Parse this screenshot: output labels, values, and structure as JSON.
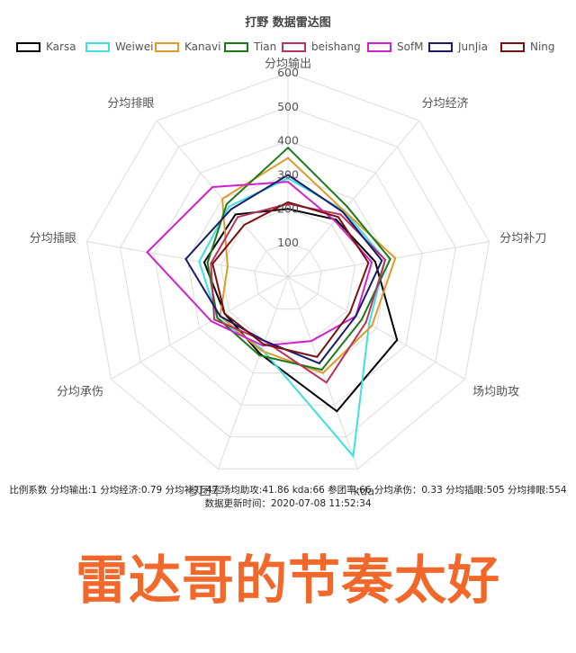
{
  "chart_data": {
    "type": "radar",
    "title": "打野 数据雷达图",
    "axes": [
      "分均输出",
      "分均经济",
      "分均补刀",
      "场均助攻",
      "kda",
      "参团率",
      "分均承伤",
      "分均插眼",
      "分均排眼"
    ],
    "rlim": [
      0,
      600
    ],
    "r_ticks": [
      "100",
      "200",
      "300",
      "400",
      "500",
      "600"
    ],
    "series": [
      {
        "name": "Karsa",
        "color": "#000000",
        "values": [
          200,
          220,
          260,
          370,
          420,
          240,
          215,
          250,
          240
        ]
      },
      {
        "name": "Weiwei",
        "color": "#3ee0e0",
        "values": [
          290,
          255,
          290,
          275,
          560,
          225,
          240,
          265,
          270
        ]
      },
      {
        "name": "Kanavi",
        "color": "#e09a2a",
        "values": [
          350,
          255,
          320,
          285,
          300,
          230,
          230,
          180,
          300
        ]
      },
      {
        "name": "Tian",
        "color": "#1a7a1a",
        "values": [
          380,
          270,
          305,
          250,
          290,
          245,
          240,
          240,
          280
        ]
      },
      {
        "name": "beishang",
        "color": "#b83260",
        "values": [
          215,
          240,
          290,
          265,
          330,
          200,
          250,
          230,
          230
        ]
      },
      {
        "name": "SofM",
        "color": "#d020d0",
        "values": [
          280,
          215,
          250,
          230,
          200,
          215,
          260,
          420,
          345
        ]
      },
      {
        "name": "JunJia",
        "color": "#1a1a6e",
        "values": [
          300,
          250,
          280,
          230,
          270,
          200,
          230,
          305,
          260
        ]
      },
      {
        "name": "Ning",
        "color": "#7a1010",
        "values": [
          220,
          230,
          240,
          210,
          250,
          210,
          215,
          225,
          200
        ]
      }
    ],
    "legend_position": "top",
    "grid": true
  },
  "footer": {
    "coefficients": "比例系数 分均输出:1 分均经济:0.79 分均补刀:47 场均助攻:41.86 kda:66 参团率:66 分均承伤：0.33 分均插眼:505 分均排眼:554",
    "update_time": "数据更新时间：2020-07-08 11:52:34"
  },
  "caption": "雷达哥的节奏太好"
}
